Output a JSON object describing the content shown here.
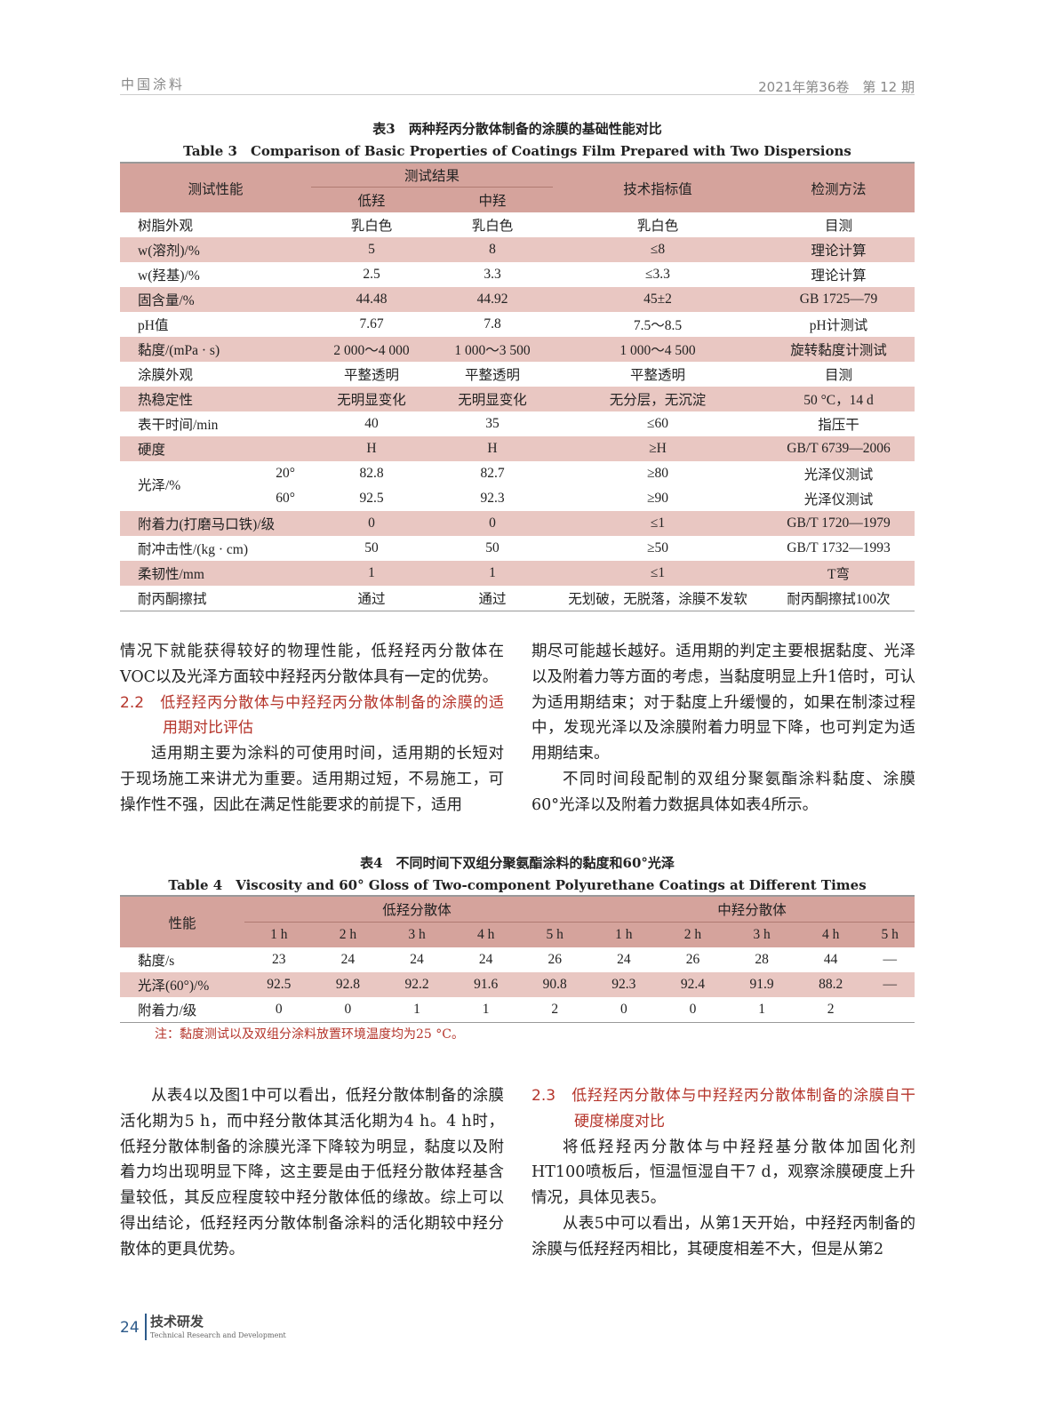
{
  "header": {
    "journal": "中国涂料",
    "issue": "2021年第36卷　第 12 期"
  },
  "table3": {
    "caption_cn": "表3　两种羟丙分散体制备的涂膜的基础性能对比",
    "caption_en": "Table 3　Comparison of Basic Properties of Coatings Film Prepared with Two Dispersions",
    "head": {
      "property": "测试性能",
      "results": "测试结果",
      "low": "低羟",
      "mid": "中羟",
      "spec": "技术指标值",
      "method": "检测方法"
    },
    "rows": [
      [
        "树脂外观",
        "乳白色",
        "乳白色",
        "乳白色",
        "目测"
      ],
      [
        "w(溶剂)/%",
        "5",
        "8",
        "≤8",
        "理论计算"
      ],
      [
        "w(羟基)/%",
        "2.5",
        "3.3",
        "≤3.3",
        "理论计算"
      ],
      [
        "固含量/%",
        "44.48",
        "44.92",
        "45±2",
        "GB 1725—79"
      ],
      [
        "pH值",
        "7.67",
        "7.8",
        "7.5～8.5",
        "pH计测试"
      ],
      [
        "黏度/(mPa · s)",
        "2 000～4 000",
        "1 000～3 500",
        "1 000～4 500",
        "旋转黏度计测试"
      ],
      [
        "涂膜外观",
        "平整透明",
        "平整透明",
        "平整透明",
        "目测"
      ],
      [
        "热稳定性",
        "无明显变化",
        "无明显变化",
        "无分层，无沉淀",
        "50 °C，14 d"
      ],
      [
        "表干时间/min",
        "40",
        "35",
        "≤60",
        "指压干"
      ],
      [
        "硬度",
        "H",
        "H",
        "≥H",
        "GB/T 6739—2006"
      ]
    ],
    "gloss": {
      "label": "光泽/%",
      "rows": [
        [
          "20°",
          "82.8",
          "82.7",
          "≥80",
          "光泽仪测试"
        ],
        [
          "60°",
          "92.5",
          "92.3",
          "≥90",
          "光泽仪测试"
        ]
      ]
    },
    "rows2": [
      [
        "附着力(打磨马口铁)/级",
        "0",
        "0",
        "≤1",
        "GB/T 1720—1979"
      ],
      [
        "耐冲击性/(kg · cm)",
        "50",
        "50",
        "≥50",
        "GB/T 1732—1993"
      ],
      [
        "柔韧性/mm",
        "1",
        "1",
        "≤1",
        "T弯"
      ],
      [
        "耐丙酮擦拭",
        "通过",
        "通过",
        "无划破，无脱落，涂膜不发软",
        "耐丙酮擦拭100次"
      ]
    ]
  },
  "body1": {
    "left": [
      "情况下就能获得较好的物理性能，低羟羟丙分散体在VOC以及光泽方面较中羟羟丙分散体具有一定的优势。"
    ],
    "section": "2.2　低羟羟丙分散体与中羟羟丙分散体制备的涂膜的适用期对比评估",
    "left2": "适用期主要为涂料的可使用时间，适用期的长短对于现场施工来讲尤为重要。适用期过短，不易施工，可操作性不强，因此在满足性能要求的前提下，适用",
    "right": "期尽可能越长越好。适用期的判定主要根据黏度、光泽以及附着力等方面的考虑，当黏度明显上升1倍时，可认为适用期结束；对于黏度上升缓慢的，如果在制漆过程中，发现光泽以及涂膜附着力明显下降，也可判定为适用期结束。",
    "right2": "不同时间段配制的双组分聚氨酯涂料黏度、涂膜60°光泽以及附着力数据具体如表4所示。"
  },
  "table4": {
    "caption_cn": "表4　不同时间下双组分聚氨酯涂料的黏度和60°光泽",
    "caption_en": "Table 4　Viscosity and 60°  Gloss of Two-component Polyurethane Coatings at Different Times",
    "head": {
      "property": "性能",
      "low": "低羟分散体",
      "mid": "中羟分散体",
      "times": [
        "1 h",
        "2 h",
        "3 h",
        "4 h",
        "5 h",
        "1 h",
        "2 h",
        "3 h",
        "4 h",
        "5 h"
      ]
    },
    "rows": [
      [
        "黏度/s",
        "23",
        "24",
        "24",
        "24",
        "26",
        "24",
        "26",
        "28",
        "44",
        "—"
      ],
      [
        "光泽(60°)/%",
        "92.5",
        "92.8",
        "92.2",
        "91.6",
        "90.8",
        "92.3",
        "92.4",
        "91.9",
        "88.2",
        "—"
      ],
      [
        "附着力/级",
        "0",
        "0",
        "1",
        "1",
        "2",
        "0",
        "0",
        "1",
        "2",
        ""
      ]
    ],
    "note": "注：黏度测试以及双组分涂料放置环境温度均为25 °C。"
  },
  "body2": {
    "left": "从表4以及图1中可以看出，低羟分散体制备的涂膜活化期为5 h，而中羟分散体其活化期为4 h。4 h时，低羟分散体制备的涂膜光泽下降较为明显，黏度以及附着力均出现明显下降，这主要是由于低羟分散体羟基含量较低，其反应程度较中羟分散体低的缘故。综上可以得出结论，低羟羟丙分散体制备涂料的活化期较中羟分散体的更具优势。",
    "section": "2.3　低羟羟丙分散体与中羟羟丙分散体制备的涂膜自干硬度梯度对比",
    "right1": "将低羟羟丙分散体与中羟羟基分散体加固化剂HT100喷板后，恒温恒湿自干7 d，观察涂膜硬度上升情况，具体见表5。",
    "right2": "从表5中可以看出，从第1天开始，中羟羟丙制备的涂膜与低羟羟丙相比，其硬度相差不大，但是从第2"
  },
  "footer": {
    "page": "24",
    "section_cn": "技术研发",
    "section_en": "Technical Research and Development"
  }
}
